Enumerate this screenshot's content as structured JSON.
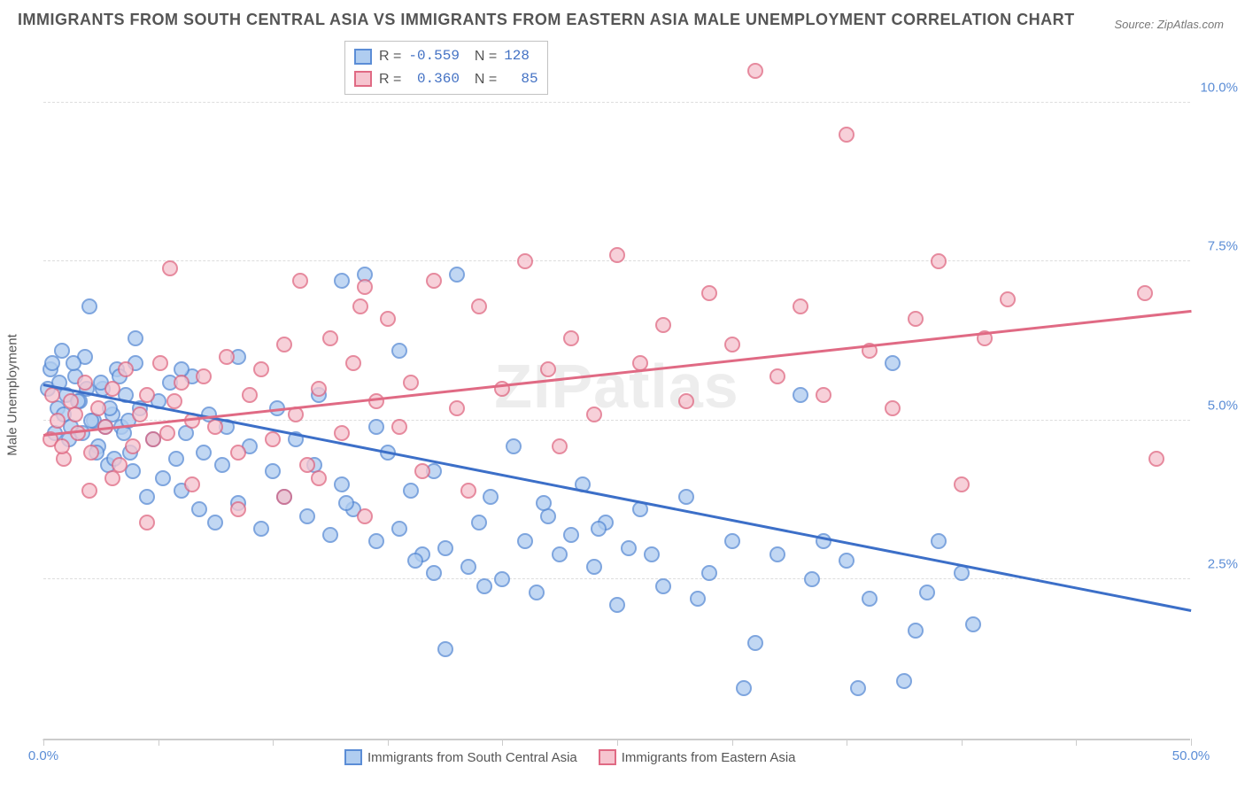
{
  "title": "IMMIGRANTS FROM SOUTH CENTRAL ASIA VS IMMIGRANTS FROM EASTERN ASIA MALE UNEMPLOYMENT CORRELATION CHART",
  "source": "Source: ZipAtlas.com",
  "watermark": "ZIPatlas",
  "chart": {
    "type": "scatter",
    "ylabel": "Male Unemployment",
    "xlim": [
      0,
      50
    ],
    "ylim": [
      0,
      11
    ],
    "xticks": [
      0,
      5,
      10,
      15,
      20,
      25,
      30,
      35,
      40,
      45,
      50
    ],
    "xtick_labels": {
      "0": "0.0%",
      "50": "50.0%"
    },
    "yticks": [
      2.5,
      5.0,
      7.5,
      10.0
    ],
    "ytick_labels": [
      "2.5%",
      "5.0%",
      "7.5%",
      "10.0%"
    ],
    "grid_color": "#dddddd",
    "axis_color": "#cccccc",
    "background_color": "#ffffff",
    "tick_label_color": "#5b8dd6",
    "point_radius": 9,
    "point_stroke": 2,
    "series": [
      {
        "name": "Immigrants from South Central Asia",
        "name_short": "south-central-asia",
        "R": "-0.559",
        "N": "128",
        "fill": "#b0cdf0",
        "stroke": "#5b8dd6",
        "trend": {
          "x1": 0,
          "y1": 5.55,
          "x2": 50,
          "y2": 2.0,
          "color": "#3c6fc8"
        },
        "points": [
          [
            0.2,
            5.5
          ],
          [
            0.3,
            5.8
          ],
          [
            0.5,
            4.8
          ],
          [
            0.6,
            5.2
          ],
          [
            0.8,
            6.1
          ],
          [
            1.0,
            5.4
          ],
          [
            1.2,
            4.9
          ],
          [
            1.4,
            5.7
          ],
          [
            1.6,
            5.3
          ],
          [
            1.8,
            6.0
          ],
          [
            2.0,
            6.8
          ],
          [
            2.2,
            5.0
          ],
          [
            2.4,
            4.6
          ],
          [
            2.6,
            5.5
          ],
          [
            2.8,
            4.3
          ],
          [
            3.0,
            5.1
          ],
          [
            3.2,
            5.8
          ],
          [
            3.4,
            4.9
          ],
          [
            3.6,
            5.4
          ],
          [
            3.8,
            4.5
          ],
          [
            4.0,
            5.9
          ],
          [
            4.2,
            5.2
          ],
          [
            4.5,
            3.8
          ],
          [
            4.8,
            4.7
          ],
          [
            5.0,
            5.3
          ],
          [
            5.2,
            4.1
          ],
          [
            5.5,
            5.6
          ],
          [
            5.8,
            4.4
          ],
          [
            6.0,
            3.9
          ],
          [
            6.2,
            4.8
          ],
          [
            6.5,
            5.7
          ],
          [
            6.8,
            3.6
          ],
          [
            7.0,
            4.5
          ],
          [
            7.2,
            5.1
          ],
          [
            7.5,
            3.4
          ],
          [
            7.8,
            4.3
          ],
          [
            8.0,
            4.9
          ],
          [
            8.5,
            3.7
          ],
          [
            9.0,
            4.6
          ],
          [
            9.5,
            3.3
          ],
          [
            10.0,
            4.2
          ],
          [
            10.5,
            3.8
          ],
          [
            11.0,
            4.7
          ],
          [
            11.5,
            3.5
          ],
          [
            12.0,
            5.4
          ],
          [
            12.5,
            3.2
          ],
          [
            13.0,
            4.0
          ],
          [
            13.5,
            3.6
          ],
          [
            14.0,
            7.3
          ],
          [
            14.5,
            3.1
          ],
          [
            15.0,
            4.5
          ],
          [
            15.5,
            3.3
          ],
          [
            16.0,
            3.9
          ],
          [
            16.5,
            2.9
          ],
          [
            17.0,
            4.2
          ],
          [
            17.5,
            3.0
          ],
          [
            18.0,
            7.3
          ],
          [
            18.5,
            2.7
          ],
          [
            19.0,
            3.4
          ],
          [
            19.5,
            3.8
          ],
          [
            20.0,
            2.5
          ],
          [
            20.5,
            4.6
          ],
          [
            21.0,
            3.1
          ],
          [
            21.5,
            2.3
          ],
          [
            22.0,
            3.5
          ],
          [
            22.5,
            2.9
          ],
          [
            23.0,
            3.2
          ],
          [
            23.5,
            4.0
          ],
          [
            24.0,
            2.7
          ],
          [
            24.5,
            3.4
          ],
          [
            25.0,
            2.1
          ],
          [
            25.5,
            3.0
          ],
          [
            26.0,
            3.6
          ],
          [
            27.0,
            2.4
          ],
          [
            28.0,
            3.8
          ],
          [
            29.0,
            2.6
          ],
          [
            30.0,
            3.1
          ],
          [
            30.5,
            0.8
          ],
          [
            31.0,
            1.5
          ],
          [
            32.0,
            2.9
          ],
          [
            33.0,
            5.4
          ],
          [
            33.5,
            2.5
          ],
          [
            34.0,
            3.1
          ],
          [
            35.0,
            2.8
          ],
          [
            35.5,
            0.8
          ],
          [
            36.0,
            2.2
          ],
          [
            37.0,
            5.9
          ],
          [
            37.5,
            0.9
          ],
          [
            38.0,
            1.7
          ],
          [
            38.5,
            2.3
          ],
          [
            39.0,
            3.1
          ],
          [
            40.0,
            2.6
          ],
          [
            40.5,
            1.8
          ],
          [
            17.5,
            1.4
          ],
          [
            13.0,
            7.2
          ],
          [
            14.5,
            4.9
          ],
          [
            15.5,
            6.1
          ],
          [
            4.0,
            6.3
          ],
          [
            0.4,
            5.9
          ],
          [
            0.7,
            5.6
          ],
          [
            0.9,
            5.1
          ],
          [
            1.1,
            4.7
          ],
          [
            1.3,
            5.9
          ],
          [
            1.5,
            5.3
          ],
          [
            1.7,
            4.8
          ],
          [
            1.9,
            5.5
          ],
          [
            2.1,
            5.0
          ],
          [
            2.3,
            4.5
          ],
          [
            2.5,
            5.6
          ],
          [
            2.7,
            4.9
          ],
          [
            2.9,
            5.2
          ],
          [
            3.1,
            4.4
          ],
          [
            3.3,
            5.7
          ],
          [
            3.5,
            4.8
          ],
          [
            3.7,
            5.0
          ],
          [
            3.9,
            4.2
          ],
          [
            10.2,
            5.2
          ],
          [
            11.8,
            4.3
          ],
          [
            13.2,
            3.7
          ],
          [
            16.2,
            2.8
          ],
          [
            19.2,
            2.4
          ],
          [
            21.8,
            3.7
          ],
          [
            24.2,
            3.3
          ],
          [
            26.5,
            2.9
          ],
          [
            28.5,
            2.2
          ],
          [
            17.0,
            2.6
          ],
          [
            6.0,
            5.8
          ],
          [
            8.5,
            6.0
          ]
        ]
      },
      {
        "name": "Immigrants from Eastern Asia",
        "name_short": "eastern-asia",
        "R": "0.360",
        "N": "85",
        "fill": "#f6c4cf",
        "stroke": "#e06a84",
        "trend": {
          "x1": 0,
          "y1": 4.75,
          "x2": 50,
          "y2": 6.7,
          "color": "#e06a84"
        },
        "points": [
          [
            0.3,
            4.7
          ],
          [
            0.6,
            5.0
          ],
          [
            0.9,
            4.4
          ],
          [
            1.2,
            5.3
          ],
          [
            1.5,
            4.8
          ],
          [
            1.8,
            5.6
          ],
          [
            2.1,
            4.5
          ],
          [
            2.4,
            5.2
          ],
          [
            2.7,
            4.9
          ],
          [
            3.0,
            5.5
          ],
          [
            3.3,
            4.3
          ],
          [
            3.6,
            5.8
          ],
          [
            3.9,
            4.6
          ],
          [
            4.2,
            5.1
          ],
          [
            4.5,
            5.4
          ],
          [
            4.8,
            4.7
          ],
          [
            5.1,
            5.9
          ],
          [
            5.4,
            4.8
          ],
          [
            5.7,
            5.3
          ],
          [
            6.0,
            5.6
          ],
          [
            5.5,
            7.4
          ],
          [
            6.5,
            5.0
          ],
          [
            7.0,
            5.7
          ],
          [
            7.5,
            4.9
          ],
          [
            8.0,
            6.0
          ],
          [
            8.5,
            4.5
          ],
          [
            9.0,
            5.4
          ],
          [
            9.5,
            5.8
          ],
          [
            10.0,
            4.7
          ],
          [
            10.5,
            6.2
          ],
          [
            11.0,
            5.1
          ],
          [
            11.5,
            4.3
          ],
          [
            12.0,
            5.5
          ],
          [
            12.5,
            6.3
          ],
          [
            13.0,
            4.8
          ],
          [
            13.5,
            5.9
          ],
          [
            14.0,
            7.1
          ],
          [
            14.5,
            5.3
          ],
          [
            15.0,
            6.6
          ],
          [
            15.5,
            4.9
          ],
          [
            16.0,
            5.6
          ],
          [
            17.0,
            7.2
          ],
          [
            18.0,
            5.2
          ],
          [
            19.0,
            6.8
          ],
          [
            20.0,
            5.5
          ],
          [
            21.0,
            7.5
          ],
          [
            22.0,
            5.8
          ],
          [
            23.0,
            6.3
          ],
          [
            24.0,
            5.1
          ],
          [
            25.0,
            7.6
          ],
          [
            26.0,
            5.9
          ],
          [
            27.0,
            6.5
          ],
          [
            28.0,
            5.3
          ],
          [
            29.0,
            7.0
          ],
          [
            30.0,
            6.2
          ],
          [
            31.0,
            10.5
          ],
          [
            32.0,
            5.7
          ],
          [
            33.0,
            6.8
          ],
          [
            34.0,
            5.4
          ],
          [
            35.0,
            9.5
          ],
          [
            36.0,
            6.1
          ],
          [
            37.0,
            5.2
          ],
          [
            38.0,
            6.6
          ],
          [
            39.0,
            7.5
          ],
          [
            40.0,
            4.0
          ],
          [
            41.0,
            6.3
          ],
          [
            42.0,
            6.9
          ],
          [
            48.0,
            7.0
          ],
          [
            48.5,
            4.4
          ],
          [
            12.0,
            4.1
          ],
          [
            2.0,
            3.9
          ],
          [
            3.0,
            4.1
          ],
          [
            4.5,
            3.4
          ],
          [
            6.5,
            4.0
          ],
          [
            8.5,
            3.6
          ],
          [
            10.5,
            3.8
          ],
          [
            14.0,
            3.5
          ],
          [
            16.5,
            4.2
          ],
          [
            18.5,
            3.9
          ],
          [
            22.5,
            4.6
          ],
          [
            0.4,
            5.4
          ],
          [
            0.8,
            4.6
          ],
          [
            1.4,
            5.1
          ],
          [
            11.2,
            7.2
          ],
          [
            13.8,
            6.8
          ]
        ]
      }
    ]
  }
}
